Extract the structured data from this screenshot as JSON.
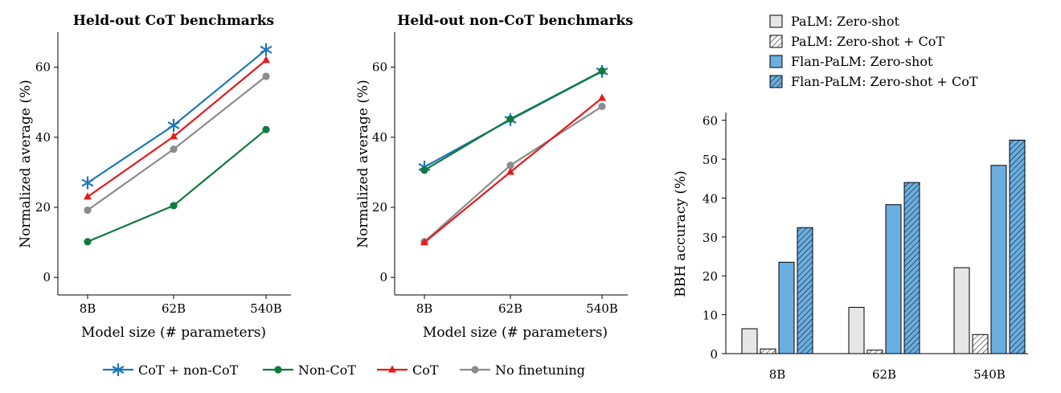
{
  "chart_data": [
    {
      "type": "line",
      "title": "Held-out CoT benchmarks",
      "xlabel": "Model size (# parameters)",
      "ylabel": "Normalized average (%)",
      "categories": [
        "8B",
        "62B",
        "540B"
      ],
      "yticks": [
        "0",
        "20",
        "40",
        "60"
      ],
      "ylim": [
        -5,
        70
      ],
      "series": [
        {
          "name": "CoT + non-CoT",
          "values": [
            27.0,
            43.4,
            65.0
          ]
        },
        {
          "name": "Non-CoT",
          "values": [
            10.2,
            20.5,
            42.2
          ]
        },
        {
          "name": "CoT",
          "values": [
            23.0,
            40.2,
            62.0
          ]
        },
        {
          "name": "No finetuning",
          "values": [
            19.2,
            36.6,
            57.4
          ]
        }
      ]
    },
    {
      "type": "line",
      "title": "Held-out non-CoT benchmarks",
      "xlabel": "Model size (# parameters)",
      "ylabel": "Normalized average (%)",
      "categories": [
        "8B",
        "62B",
        "540B"
      ],
      "yticks": [
        "0",
        "20",
        "40",
        "60"
      ],
      "ylim": [
        -5,
        70
      ],
      "series": [
        {
          "name": "CoT + non-CoT",
          "values": [
            31.5,
            45.0,
            58.8
          ]
        },
        {
          "name": "Non-CoT",
          "values": [
            30.6,
            45.2,
            58.9
          ]
        },
        {
          "name": "CoT",
          "values": [
            10.0,
            30.1,
            51.2
          ]
        },
        {
          "name": "No finetuning",
          "values": [
            10.2,
            32.0,
            48.8
          ]
        }
      ]
    },
    {
      "type": "bar",
      "ylabel": "BBH accuracy (%)",
      "categories": [
        "8B",
        "62B",
        "540B"
      ],
      "yticks": [
        "0",
        "10",
        "20",
        "30",
        "40",
        "50",
        "60"
      ],
      "ylim": [
        0,
        62
      ],
      "series": [
        {
          "name": "PaLM: Zero-shot",
          "values": [
            6.4,
            11.9,
            22.1
          ]
        },
        {
          "name": "PaLM: Zero-shot + CoT",
          "values": [
            1.2,
            0.9,
            4.9
          ]
        },
        {
          "name": "Flan-PaLM: Zero-shot",
          "values": [
            23.5,
            38.3,
            48.4
          ]
        },
        {
          "name": "Flan-PaLM: Zero-shot + CoT",
          "values": [
            32.4,
            44.0,
            54.9
          ]
        }
      ]
    }
  ],
  "line_legend": [
    "CoT + non-CoT",
    "Non-CoT",
    "CoT",
    "No finetuning"
  ],
  "colors": {
    "cot_noncot": "#1f77b4",
    "non_cot": "#107a3f",
    "cot": "#e41a1c",
    "no_finetuning": "#8c8c8c",
    "palm_bar": "#e6e6e6",
    "flan_bar": "#6aaee0"
  }
}
